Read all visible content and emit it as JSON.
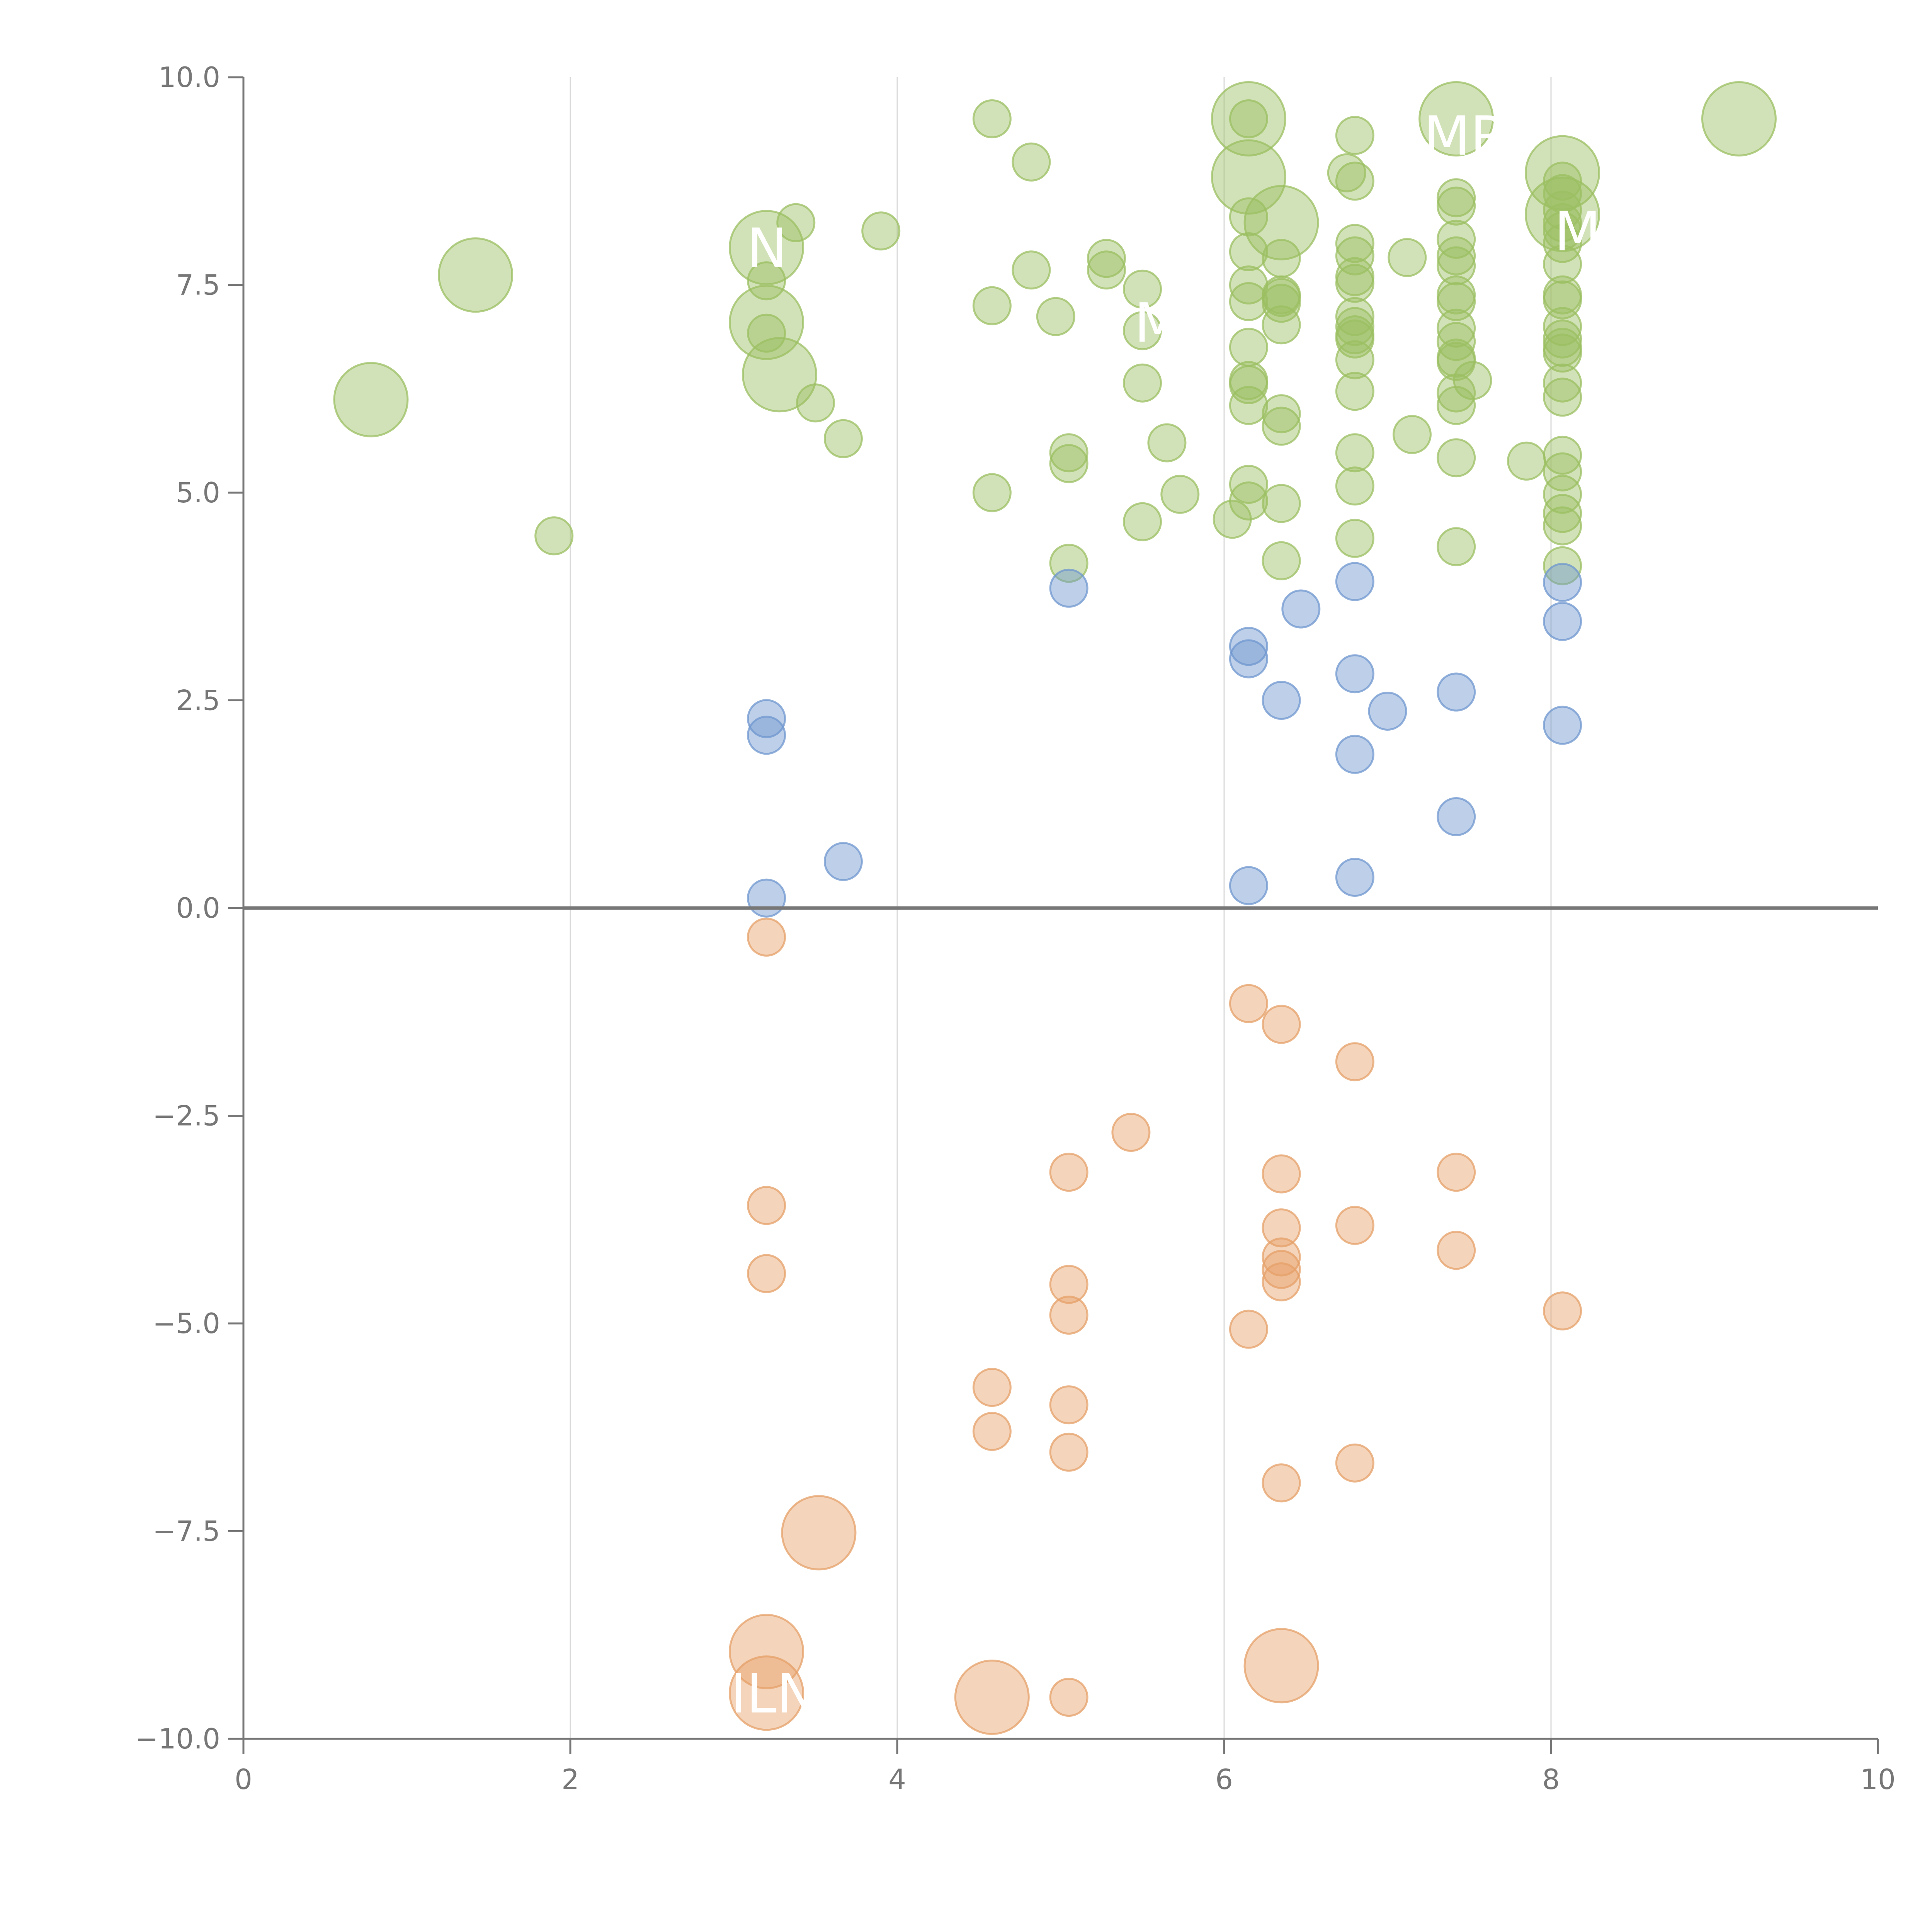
{
  "chart_data": {
    "type": "scatter",
    "title": "",
    "xlabel": "",
    "ylabel": "",
    "xlim": [
      0,
      10
    ],
    "ylim": [
      -10,
      10
    ],
    "x_ticks": [
      "0",
      "2",
      "4",
      "6",
      "8",
      "10"
    ],
    "y_ticks": [
      "−10.0",
      "−7.5",
      "−5.0",
      "−2.5",
      "0.0",
      "2.5",
      "5.0",
      "7.5",
      "10.0"
    ],
    "grid": {
      "vertical": true,
      "horizontal": false
    },
    "zero_line": true,
    "colors": {
      "high": "#9bbf62",
      "mid": "#6f97cf",
      "low": "#e6a068",
      "axis": "#777777",
      "grid": "#d9d9d9"
    },
    "series": [
      {
        "color_key": "high",
        "points": [
          [
            0.78,
            6.12,
            3
          ],
          [
            1.42,
            7.62,
            3
          ],
          [
            1.9,
            4.48,
            1
          ],
          [
            3.2,
            7.95,
            3
          ],
          [
            3.2,
            7.05,
            3
          ],
          [
            3.28,
            6.42,
            3
          ],
          [
            3.2,
            7.55,
            1
          ],
          [
            3.2,
            6.92,
            1
          ],
          [
            3.38,
            8.25,
            1
          ],
          [
            3.5,
            6.08,
            1
          ],
          [
            3.67,
            5.65,
            1
          ],
          [
            3.9,
            8.15,
            1
          ],
          [
            4.58,
            9.5,
            1
          ],
          [
            4.82,
            8.98,
            1
          ],
          [
            4.58,
            7.25,
            1
          ],
          [
            4.82,
            7.68,
            1
          ],
          [
            4.58,
            5.0,
            1
          ],
          [
            4.97,
            7.12,
            1
          ],
          [
            5.05,
            5.48,
            1
          ],
          [
            5.05,
            5.35,
            1
          ],
          [
            5.05,
            4.15,
            1
          ],
          [
            5.28,
            7.82,
            1
          ],
          [
            5.28,
            7.68,
            1
          ],
          [
            5.5,
            7.45,
            1
          ],
          [
            5.5,
            6.95,
            1
          ],
          [
            5.5,
            6.32,
            1
          ],
          [
            5.5,
            4.65,
            1
          ],
          [
            5.65,
            5.6,
            1
          ],
          [
            5.73,
            4.98,
            1
          ],
          [
            6.05,
            4.68,
            1
          ],
          [
            6.15,
            9.5,
            3
          ],
          [
            6.15,
            8.8,
            3
          ],
          [
            6.35,
            8.25,
            3
          ],
          [
            6.15,
            9.5,
            1
          ],
          [
            6.15,
            8.32,
            1
          ],
          [
            6.15,
            7.9,
            1
          ],
          [
            6.15,
            7.5,
            1
          ],
          [
            6.15,
            7.3,
            1
          ],
          [
            6.15,
            6.75,
            1
          ],
          [
            6.15,
            6.35,
            1
          ],
          [
            6.15,
            6.3,
            1
          ],
          [
            6.15,
            6.05,
            1
          ],
          [
            6.15,
            5.1,
            1
          ],
          [
            6.15,
            4.9,
            1
          ],
          [
            6.35,
            7.82,
            1
          ],
          [
            6.35,
            7.38,
            1
          ],
          [
            6.35,
            7.35,
            1
          ],
          [
            6.35,
            7.28,
            1
          ],
          [
            6.35,
            7.02,
            1
          ],
          [
            6.35,
            5.95,
            1
          ],
          [
            6.35,
            5.8,
            1
          ],
          [
            6.35,
            4.87,
            1
          ],
          [
            6.35,
            4.18,
            1
          ],
          [
            6.8,
            9.3,
            1
          ],
          [
            6.75,
            8.85,
            1
          ],
          [
            6.8,
            8.75,
            1
          ],
          [
            6.8,
            8.0,
            1
          ],
          [
            6.8,
            7.85,
            1
          ],
          [
            6.8,
            7.6,
            1
          ],
          [
            6.8,
            7.52,
            1
          ],
          [
            6.8,
            7.12,
            1
          ],
          [
            6.8,
            7.0,
            1
          ],
          [
            6.8,
            6.9,
            1
          ],
          [
            6.8,
            6.85,
            1
          ],
          [
            6.8,
            6.6,
            1
          ],
          [
            6.8,
            6.22,
            1
          ],
          [
            6.8,
            5.48,
            1
          ],
          [
            6.8,
            5.08,
            1
          ],
          [
            6.8,
            4.45,
            1
          ],
          [
            7.12,
            7.83,
            1
          ],
          [
            7.15,
            5.7,
            1
          ],
          [
            7.42,
            9.5,
            3
          ],
          [
            7.42,
            8.55,
            1
          ],
          [
            7.42,
            8.45,
            1
          ],
          [
            7.42,
            8.05,
            1
          ],
          [
            7.42,
            7.85,
            1
          ],
          [
            7.42,
            7.73,
            1
          ],
          [
            7.42,
            7.38,
            1
          ],
          [
            7.42,
            7.3,
            1
          ],
          [
            7.42,
            6.98,
            1
          ],
          [
            7.42,
            6.82,
            1
          ],
          [
            7.42,
            6.62,
            1
          ],
          [
            7.42,
            6.58,
            1
          ],
          [
            7.42,
            6.2,
            1
          ],
          [
            7.42,
            6.05,
            1
          ],
          [
            7.52,
            6.35,
            1
          ],
          [
            7.42,
            5.42,
            1
          ],
          [
            7.42,
            4.35,
            1
          ],
          [
            7.85,
            5.38,
            1
          ],
          [
            8.07,
            8.85,
            3
          ],
          [
            8.07,
            8.35,
            3
          ],
          [
            8.07,
            8.75,
            1
          ],
          [
            8.07,
            8.6,
            1
          ],
          [
            8.07,
            8.4,
            1
          ],
          [
            8.07,
            8.25,
            1
          ],
          [
            8.07,
            8.15,
            1
          ],
          [
            8.07,
            8.0,
            1
          ],
          [
            8.07,
            7.75,
            1
          ],
          [
            8.07,
            7.38,
            1
          ],
          [
            8.07,
            7.32,
            1
          ],
          [
            8.07,
            7.0,
            1
          ],
          [
            8.07,
            6.85,
            1
          ],
          [
            8.07,
            6.75,
            1
          ],
          [
            8.07,
            6.68,
            1
          ],
          [
            8.07,
            6.32,
            1
          ],
          [
            8.07,
            6.15,
            1
          ],
          [
            8.07,
            5.45,
            1
          ],
          [
            8.07,
            5.25,
            1
          ],
          [
            8.07,
            4.98,
            1
          ],
          [
            8.07,
            4.75,
            1
          ],
          [
            8.07,
            4.6,
            1
          ],
          [
            8.07,
            4.12,
            1
          ],
          [
            9.15,
            9.5,
            3
          ]
        ]
      },
      {
        "color_key": "mid",
        "points": [
          [
            3.2,
            2.28,
            1
          ],
          [
            3.2,
            2.08,
            1
          ],
          [
            3.2,
            0.12,
            1
          ],
          [
            3.67,
            0.56,
            1
          ],
          [
            5.05,
            3.85,
            1
          ],
          [
            6.15,
            3.15,
            1
          ],
          [
            6.15,
            3.0,
            1
          ],
          [
            6.15,
            0.27,
            1
          ],
          [
            6.35,
            2.5,
            1
          ],
          [
            6.47,
            3.6,
            1
          ],
          [
            6.8,
            3.93,
            1
          ],
          [
            6.8,
            2.82,
            1
          ],
          [
            6.8,
            1.85,
            1
          ],
          [
            6.8,
            0.37,
            1
          ],
          [
            7.0,
            2.37,
            1
          ],
          [
            7.42,
            2.6,
            1
          ],
          [
            7.42,
            1.1,
            1
          ],
          [
            8.07,
            3.92,
            1
          ],
          [
            8.07,
            3.45,
            1
          ],
          [
            8.07,
            2.2,
            1
          ]
        ]
      },
      {
        "color_key": "low",
        "points": [
          [
            3.2,
            -0.35,
            1
          ],
          [
            3.2,
            -3.58,
            1
          ],
          [
            3.2,
            -4.4,
            1
          ],
          [
            3.2,
            -8.95,
            3
          ],
          [
            3.2,
            -9.45,
            3
          ],
          [
            3.52,
            -7.52,
            3
          ],
          [
            4.58,
            -5.77,
            1
          ],
          [
            4.58,
            -6.3,
            1
          ],
          [
            4.58,
            -9.5,
            3
          ],
          [
            5.05,
            -3.18,
            1
          ],
          [
            5.05,
            -4.53,
            1
          ],
          [
            5.05,
            -4.9,
            1
          ],
          [
            5.05,
            -5.98,
            1
          ],
          [
            5.05,
            -6.55,
            1
          ],
          [
            5.05,
            -9.5,
            1
          ],
          [
            5.43,
            -2.7,
            1
          ],
          [
            6.15,
            -1.15,
            1
          ],
          [
            6.15,
            -5.07,
            1
          ],
          [
            6.35,
            -1.4,
            1
          ],
          [
            6.35,
            -3.2,
            1
          ],
          [
            6.35,
            -3.85,
            1
          ],
          [
            6.35,
            -4.2,
            1
          ],
          [
            6.35,
            -4.35,
            1
          ],
          [
            6.35,
            -4.5,
            1
          ],
          [
            6.35,
            -6.92,
            1
          ],
          [
            6.35,
            -9.12,
            3
          ],
          [
            6.8,
            -1.85,
            1
          ],
          [
            6.8,
            -3.82,
            1
          ],
          [
            6.8,
            -6.68,
            1
          ],
          [
            7.42,
            -3.18,
            1
          ],
          [
            7.42,
            -4.12,
            1
          ],
          [
            8.07,
            -4.85,
            1
          ]
        ]
      }
    ],
    "annotations": [
      {
        "text": "N",
        "x": 3.08,
        "y": 7.95
      },
      {
        "text": "M",
        "x": 5.45,
        "y": 7.05
      },
      {
        "text": "MR",
        "x": 7.22,
        "y": 9.3
      },
      {
        "text": "M",
        "x": 8.02,
        "y": 8.15
      },
      {
        "text": "ILN",
        "x": 2.98,
        "y": -9.45
      }
    ]
  }
}
